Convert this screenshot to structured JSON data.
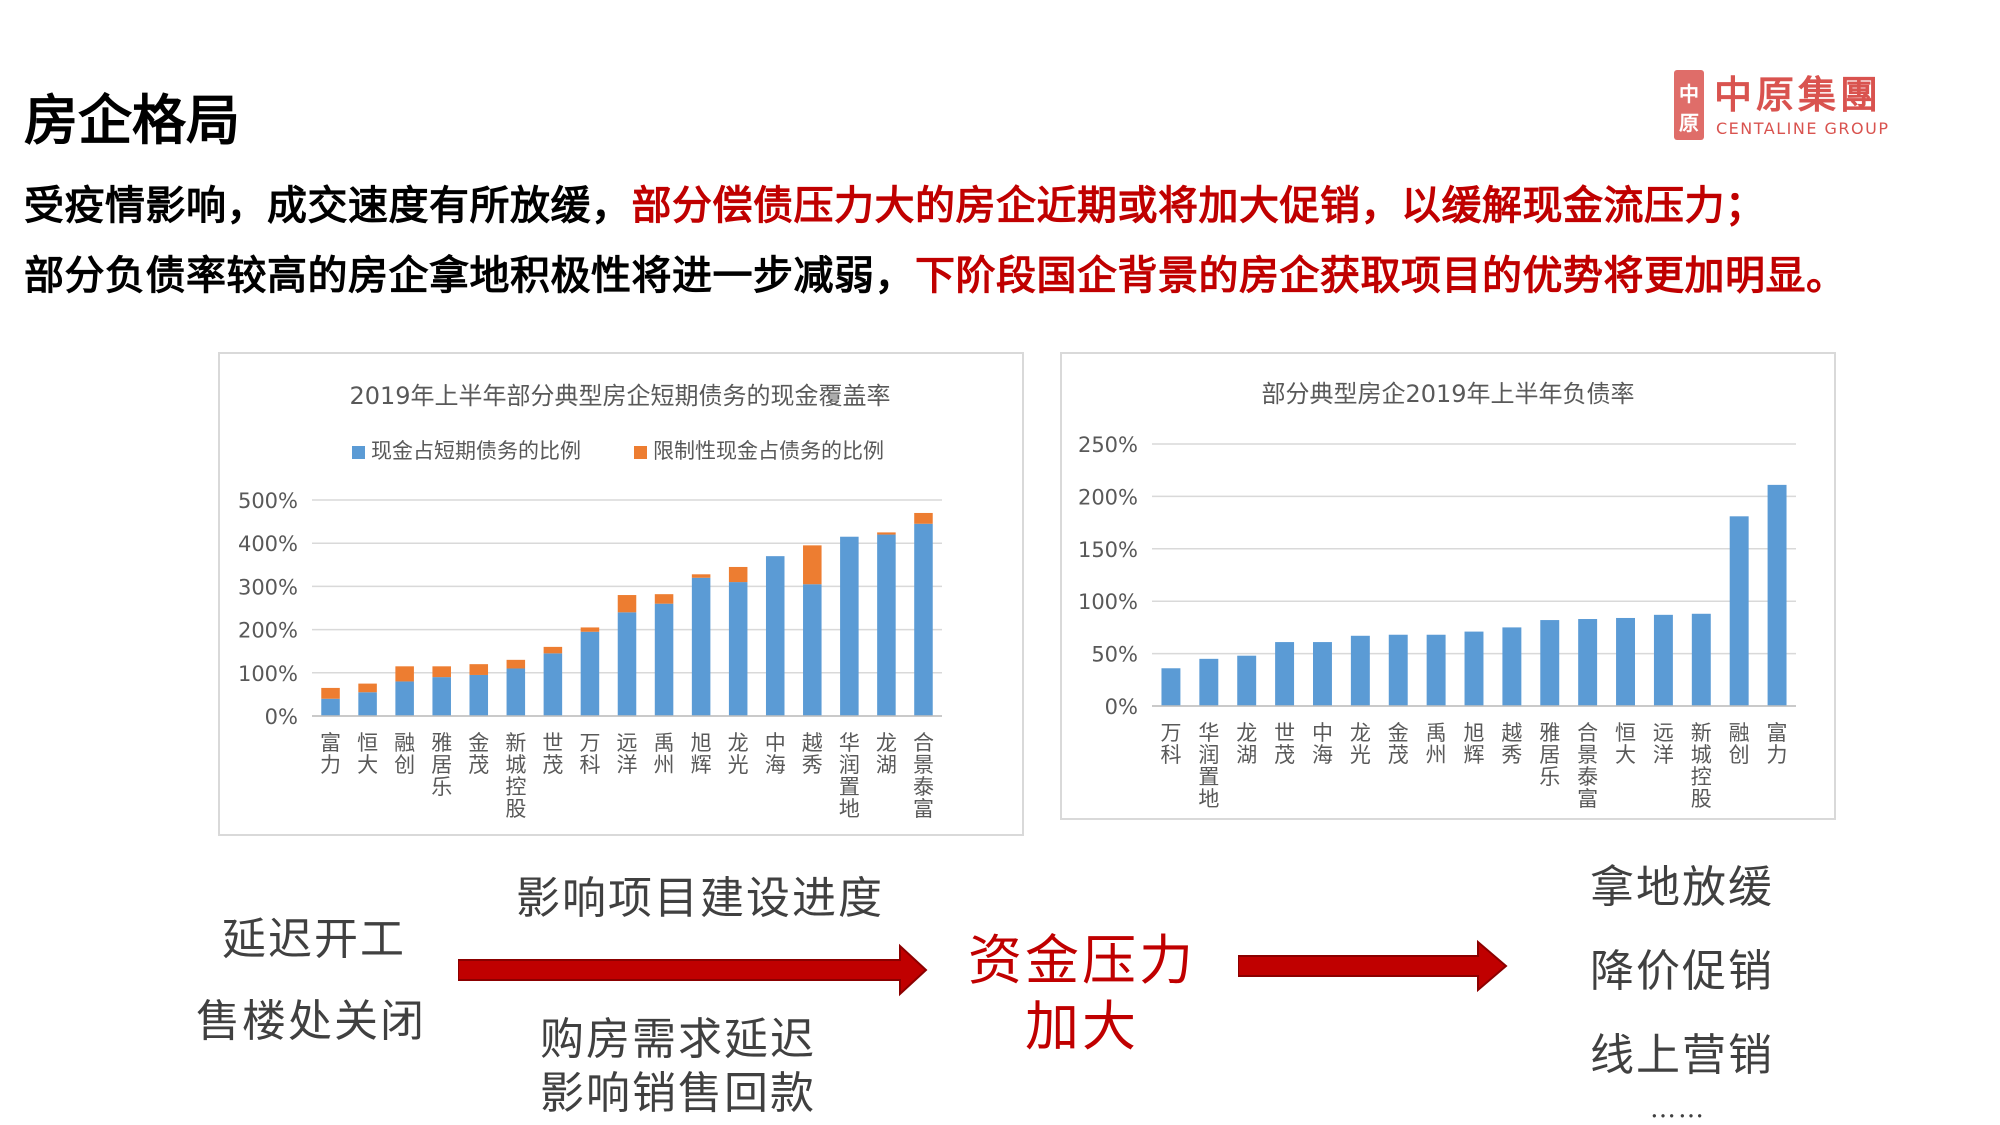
{
  "title": "房企格局",
  "headline1": {
    "black": "受疫情影响，成交速度有所放缓，",
    "red": "部分偿债压力大的房企近期或将加大促销，以缓解现金流压力；"
  },
  "headline2": {
    "black": "部分负债率较高的房企拿地积极性将进一步减弱，",
    "red": "下阶段国企背景的房企获取项目的优势将更加明显。"
  },
  "logo": {
    "mark": "中原",
    "cn": "中原集團",
    "en": "CENTALINE GROUP"
  },
  "colors": {
    "accent_red": "#c00000",
    "bar_blue": "#5b9bd5",
    "bar_orange": "#ed7d31",
    "logo_red": "#d9534f"
  },
  "chart_data": [
    {
      "type": "bar",
      "stacked": true,
      "title": "2019年上半年部分典型房企短期债务的现金覆盖率",
      "categories": [
        "富力",
        "恒大",
        "融创",
        "雅居乐",
        "金茂",
        "新城控股",
        "世茂",
        "万科",
        "远洋",
        "禹州",
        "旭辉",
        "龙光",
        "中海",
        "越秀",
        "华润置地",
        "龙湖",
        "合景泰富"
      ],
      "series": [
        {
          "name": "现金占短期债务的比例",
          "values": [
            40,
            55,
            80,
            90,
            95,
            110,
            145,
            195,
            240,
            260,
            320,
            310,
            370,
            305,
            415,
            420,
            445
          ]
        },
        {
          "name": "限制性现金占债务的比例",
          "values": [
            25,
            20,
            35,
            25,
            25,
            20,
            15,
            10,
            40,
            22,
            8,
            35,
            0,
            90,
            0,
            5,
            25
          ]
        }
      ],
      "yticks": [
        "0%",
        "100%",
        "200%",
        "300%",
        "400%",
        "500%"
      ],
      "ylim": [
        0,
        500
      ],
      "legend": "top",
      "grid": true
    },
    {
      "type": "bar",
      "title": "部分典型房企2019年上半年负债率",
      "categories": [
        "万科",
        "华润置地",
        "龙湖",
        "世茂",
        "中海",
        "龙光",
        "金茂",
        "禹州",
        "旭辉",
        "越秀",
        "雅居乐",
        "合景泰富",
        "恒大",
        "远洋",
        "新城控股",
        "融创",
        "富力"
      ],
      "values": [
        36,
        45,
        48,
        61,
        61,
        67,
        68,
        68,
        71,
        75,
        82,
        83,
        84,
        87,
        88,
        181,
        211
      ],
      "yticks": [
        "0%",
        "50%",
        "100%",
        "150%",
        "200%",
        "250%"
      ],
      "ylim": [
        0,
        250
      ],
      "grid": true
    }
  ],
  "flow": {
    "left": [
      "延迟开工",
      "售楼处关闭"
    ],
    "arrow1_top": "影响项目建设进度",
    "arrow1_bottom": [
      "购房需求延迟",
      "影响销售回款"
    ],
    "center": [
      "资金压力",
      "加大"
    ],
    "right": [
      "拿地放缓",
      "降价促销",
      "线上营销",
      "……"
    ]
  }
}
